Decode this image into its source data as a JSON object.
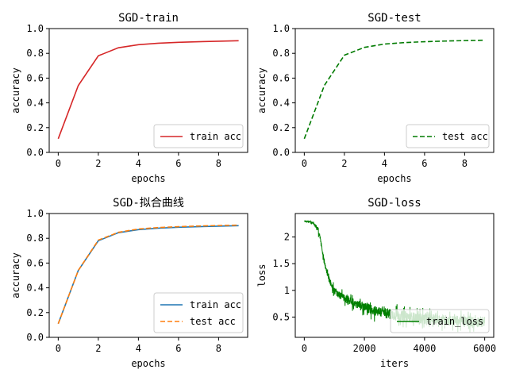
{
  "chart_data": [
    {
      "type": "line",
      "title": "SGD-train",
      "xlabel": "epochs",
      "ylabel": "accuracy",
      "xlim": [
        -0.45,
        9.45
      ],
      "ylim": [
        0,
        1.0
      ],
      "xticks": [
        0,
        2,
        4,
        6,
        8
      ],
      "yticks": [
        0.0,
        0.2,
        0.4,
        0.6,
        0.8,
        1.0
      ],
      "legend": "lower right",
      "series": [
        {
          "name": "train acc",
          "color": "#d62728",
          "style": "solid",
          "x": [
            0,
            1,
            2,
            3,
            4,
            5,
            6,
            7,
            8,
            9
          ],
          "y": [
            0.11,
            0.54,
            0.78,
            0.845,
            0.87,
            0.882,
            0.889,
            0.894,
            0.898,
            0.902
          ]
        }
      ]
    },
    {
      "type": "line",
      "title": "SGD-test",
      "xlabel": "epochs",
      "ylabel": "accuracy",
      "xlim": [
        -0.45,
        9.45
      ],
      "ylim": [
        0,
        1.0
      ],
      "xticks": [
        0,
        2,
        4,
        6,
        8
      ],
      "yticks": [
        0.0,
        0.2,
        0.4,
        0.6,
        0.8,
        1.0
      ],
      "legend": "lower right",
      "series": [
        {
          "name": "test acc",
          "color": "#007a00",
          "style": "dashed",
          "x": [
            0,
            1,
            2,
            3,
            4,
            5,
            6,
            7,
            8,
            9
          ],
          "y": [
            0.11,
            0.54,
            0.785,
            0.848,
            0.875,
            0.887,
            0.894,
            0.899,
            0.903,
            0.906
          ]
        }
      ]
    },
    {
      "type": "line",
      "title": "SGD-拟合曲线",
      "xlabel": "epochs",
      "ylabel": "accuracy",
      "xlim": [
        -0.45,
        9.45
      ],
      "ylim": [
        0,
        1.0
      ],
      "xticks": [
        0,
        2,
        4,
        6,
        8
      ],
      "yticks": [
        0.0,
        0.2,
        0.4,
        0.6,
        0.8,
        1.0
      ],
      "legend": "lower right",
      "series": [
        {
          "name": "train acc",
          "color": "#1f77b4",
          "style": "solid",
          "x": [
            0,
            1,
            2,
            3,
            4,
            5,
            6,
            7,
            8,
            9
          ],
          "y": [
            0.11,
            0.54,
            0.78,
            0.845,
            0.87,
            0.882,
            0.889,
            0.894,
            0.898,
            0.902
          ]
        },
        {
          "name": "test acc",
          "color": "#ff7f0e",
          "style": "dashed",
          "x": [
            0,
            1,
            2,
            3,
            4,
            5,
            6,
            7,
            8,
            9
          ],
          "y": [
            0.11,
            0.54,
            0.785,
            0.848,
            0.875,
            0.887,
            0.894,
            0.899,
            0.903,
            0.906
          ]
        }
      ]
    },
    {
      "type": "line",
      "title": "SGD-loss",
      "xlabel": "iters",
      "ylabel": "loss",
      "xlim": [
        -300,
        6300
      ],
      "ylim": [
        0.12,
        2.44
      ],
      "xticks": [
        0,
        2000,
        4000,
        6000
      ],
      "yticks": [
        0.5,
        1.0,
        1.5,
        2.0
      ],
      "legend": "lower right",
      "series": [
        {
          "name": "train_loss",
          "color": "#008000",
          "style": "noisy",
          "x": [
            0,
            150,
            300,
            450,
            500,
            600,
            700,
            800,
            900,
            1000,
            1200,
            1500,
            2000,
            2500,
            3000,
            3500,
            4000,
            4500,
            5000,
            5500,
            6000
          ],
          "y": [
            2.3,
            2.29,
            2.26,
            2.15,
            2.05,
            1.75,
            1.45,
            1.25,
            1.1,
            1.0,
            0.9,
            0.8,
            0.68,
            0.6,
            0.54,
            0.5,
            0.47,
            0.45,
            0.43,
            0.42,
            0.41
          ]
        }
      ]
    }
  ]
}
